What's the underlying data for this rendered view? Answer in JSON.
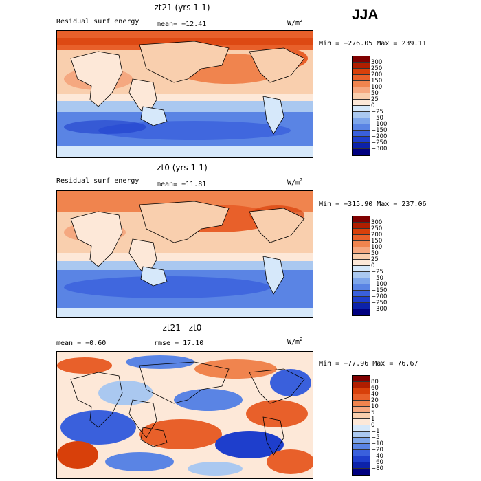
{
  "season": "JJA",
  "palette_std": [
    "#800000",
    "#b01e00",
    "#d8400a",
    "#e8602a",
    "#f0844e",
    "#f5a880",
    "#f9cfae",
    "#fde8d8",
    "#d6e8fa",
    "#aac8f0",
    "#7ea6ea",
    "#5a84e4",
    "#3a60dc",
    "#1e3ecc",
    "#0c22aa",
    "#000080"
  ],
  "panels": [
    {
      "title": "zt21 (yrs 1-1)",
      "label": "Residual surf energy",
      "mean": "mean= −12.41",
      "units": "W/m",
      "units_sup": "2",
      "minmax": "Min = −276.05 Max = 239.11",
      "colorbar_ticks": [
        "300",
        "250",
        "200",
        "150",
        "100",
        "50",
        "25",
        "0",
        "−25",
        "−50",
        "−100",
        "−150",
        "−200",
        "−250",
        "−300"
      ]
    },
    {
      "title": "zt0 (yrs 1-1)",
      "label": "Residual surf energy",
      "mean": "mean= −11.81",
      "units": "W/m",
      "units_sup": "2",
      "minmax": "Min = −315.90 Max = 237.06",
      "colorbar_ticks": [
        "300",
        "250",
        "200",
        "150",
        "100",
        "50",
        "25",
        "0",
        "−25",
        "−50",
        "−100",
        "−150",
        "−200",
        "−250",
        "−300"
      ]
    },
    {
      "title": "zt21 - zt0",
      "label": "mean =  −0.60",
      "mean": "rmse =  17.10",
      "units": "W/m",
      "units_sup": "2",
      "minmax": "Min = −77.96 Max = 76.67",
      "colorbar_ticks": [
        "80",
        "60",
        "40",
        "20",
        "10",
        "5",
        "1",
        "0",
        "−1",
        "−5",
        "−10",
        "−20",
        "−40",
        "−60",
        "−80"
      ]
    }
  ]
}
